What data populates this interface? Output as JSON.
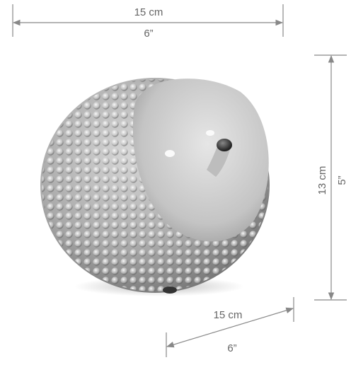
{
  "dimensions": {
    "width": {
      "metric": "15 cm",
      "imperial": "6”"
    },
    "height": {
      "metric": "13 cm",
      "imperial": "5”"
    },
    "depth": {
      "metric": "15 cm",
      "imperial": "6”"
    }
  }
}
